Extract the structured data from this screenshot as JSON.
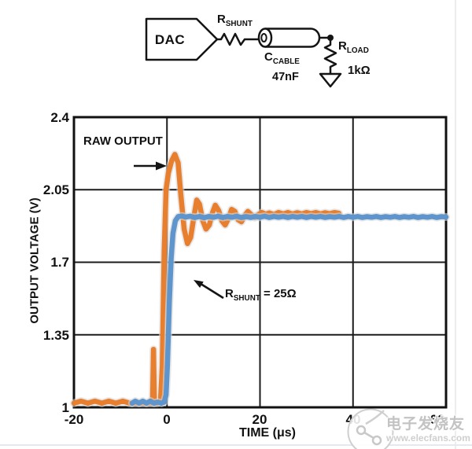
{
  "circuit": {
    "dac": "DAC",
    "rshunt": {
      "main": "R",
      "sub": "SHUNT"
    },
    "ccable": {
      "main": "C",
      "sub": "CABLE",
      "value": "47nF"
    },
    "rload": {
      "main": "R",
      "sub": "LOAD",
      "value": "1kΩ"
    }
  },
  "labels": {
    "raw_output": "RAW OUTPUT",
    "shunt_annotation": {
      "main": "R",
      "sub": "SHUNT",
      "suffix": " = 25Ω"
    }
  },
  "watermark": {
    "brand": "电子发烧友",
    "site": "www.elecfans.com"
  },
  "chart_data": {
    "type": "line",
    "title": "",
    "xlabel": "TIME (μs)",
    "ylabel": "OUTPUT VOLTAGE (V)",
    "xlim": [
      -20,
      60
    ],
    "ylim": [
      1,
      2.4
    ],
    "xticks": [
      -20,
      0,
      20,
      40,
      60
    ],
    "yticks": [
      1,
      1.35,
      1.7,
      2.05,
      2.4
    ],
    "xtick_labels": [
      "-20",
      "0",
      "20",
      "40",
      "60"
    ],
    "ytick_labels": [
      "1",
      "1.35",
      "1.7",
      "2.05",
      "2.4"
    ],
    "grid": true,
    "legend": "none",
    "annotations": [
      "RAW OUTPUT",
      "RSHUNT = 25Ω"
    ],
    "series": [
      {
        "name": "RAW OUTPUT",
        "color": "#E87F2E",
        "points": [
          [
            -20,
            1.02
          ],
          [
            -18.5,
            1.03
          ],
          [
            -17,
            1.02
          ],
          [
            -15.5,
            1.03
          ],
          [
            -14,
            1.02
          ],
          [
            -12.5,
            1.03
          ],
          [
            -11,
            1.02
          ],
          [
            -9.5,
            1.03
          ],
          [
            -8,
            1.02
          ],
          [
            -6.5,
            1.02
          ],
          [
            -5,
            1.02
          ],
          [
            -4,
            1.02
          ],
          [
            -3.1,
            1.02
          ],
          [
            -2.9,
            1.28
          ],
          [
            -2.7,
            1.02
          ],
          [
            -2,
            1.02
          ],
          [
            -1.4,
            1.03
          ],
          [
            -1.0,
            1.2
          ],
          [
            -0.6,
            1.75
          ],
          [
            -0.2,
            2.05
          ],
          [
            0.3,
            2.13
          ],
          [
            1.0,
            2.19
          ],
          [
            1.7,
            2.22
          ],
          [
            2.4,
            2.18
          ],
          [
            3.0,
            2.02
          ],
          [
            3.7,
            1.86
          ],
          [
            4.4,
            1.79
          ],
          [
            5.1,
            1.82
          ],
          [
            5.8,
            1.92
          ],
          [
            6.4,
            2.0
          ],
          [
            7.0,
            1.98
          ],
          [
            7.7,
            1.9
          ],
          [
            8.4,
            1.86
          ],
          [
            9.1,
            1.88
          ],
          [
            9.8,
            1.94
          ],
          [
            10.4,
            1.975
          ],
          [
            11.1,
            1.95
          ],
          [
            11.8,
            1.9
          ],
          [
            12.5,
            1.88
          ],
          [
            13.2,
            1.91
          ],
          [
            13.9,
            1.955
          ],
          [
            14.6,
            1.945
          ],
          [
            15.3,
            1.905
          ],
          [
            16.0,
            1.895
          ],
          [
            16.7,
            1.925
          ],
          [
            17.4,
            1.945
          ],
          [
            18.1,
            1.93
          ],
          [
            18.9,
            1.915
          ],
          [
            19.6,
            1.93
          ],
          [
            20.4,
            1.94
          ],
          [
            21.2,
            1.932
          ],
          [
            22,
            1.938
          ],
          [
            23,
            1.93
          ],
          [
            24,
            1.94
          ],
          [
            25,
            1.933
          ],
          [
            26,
            1.94
          ],
          [
            27,
            1.932
          ],
          [
            28,
            1.939
          ],
          [
            29,
            1.933
          ],
          [
            30,
            1.94
          ],
          [
            31,
            1.934
          ],
          [
            32,
            1.94
          ],
          [
            33,
            1.933
          ],
          [
            34,
            1.939
          ],
          [
            35,
            1.934
          ],
          [
            36,
            1.94
          ],
          [
            37,
            1.936
          ]
        ]
      },
      {
        "name": "RSHUNT = 25Ω",
        "color": "#5E95CD",
        "points": [
          [
            -7.5,
            1.02
          ],
          [
            -6.8,
            1.03
          ],
          [
            -6,
            1.02
          ],
          [
            -5.2,
            1.03
          ],
          [
            -4.4,
            1.02
          ],
          [
            -3.6,
            1.03
          ],
          [
            -2.8,
            1.02
          ],
          [
            -2,
            1.025
          ],
          [
            -1.2,
            1.02
          ],
          [
            -0.6,
            1.025
          ],
          [
            -0.2,
            1.06
          ],
          [
            0.1,
            1.2
          ],
          [
            0.5,
            1.5
          ],
          [
            0.9,
            1.72
          ],
          [
            1.3,
            1.84
          ],
          [
            1.8,
            1.9
          ],
          [
            2.4,
            1.92
          ],
          [
            3.2,
            1.923
          ],
          [
            4,
            1.918
          ],
          [
            5,
            1.922
          ],
          [
            6,
            1.916
          ],
          [
            7,
            1.921
          ],
          [
            8,
            1.915
          ],
          [
            9,
            1.921
          ],
          [
            10,
            1.917
          ],
          [
            11,
            1.922
          ],
          [
            12,
            1.916
          ],
          [
            13,
            1.921
          ],
          [
            14,
            1.917
          ],
          [
            15,
            1.922
          ],
          [
            16,
            1.916
          ],
          [
            17,
            1.92
          ],
          [
            18,
            1.916
          ],
          [
            19,
            1.921
          ],
          [
            20,
            1.917
          ],
          [
            21,
            1.922
          ],
          [
            22,
            1.916
          ],
          [
            23,
            1.921
          ],
          [
            24,
            1.917
          ],
          [
            25,
            1.921
          ],
          [
            26,
            1.916
          ],
          [
            27,
            1.921
          ],
          [
            28,
            1.917
          ],
          [
            29,
            1.921
          ],
          [
            30,
            1.916
          ],
          [
            31,
            1.921
          ],
          [
            32,
            1.917
          ],
          [
            33,
            1.921
          ],
          [
            34,
            1.916
          ],
          [
            35,
            1.92
          ],
          [
            36,
            1.917
          ],
          [
            37,
            1.921
          ],
          [
            38,
            1.916
          ],
          [
            39,
            1.921
          ],
          [
            40,
            1.917
          ],
          [
            41,
            1.921
          ],
          [
            42,
            1.916
          ],
          [
            43,
            1.92
          ],
          [
            44,
            1.917
          ],
          [
            45,
            1.921
          ],
          [
            46,
            1.916
          ],
          [
            47,
            1.92
          ],
          [
            48,
            1.917
          ],
          [
            49,
            1.921
          ],
          [
            50,
            1.916
          ],
          [
            51,
            1.92
          ],
          [
            52,
            1.917
          ],
          [
            53,
            1.921
          ],
          [
            54,
            1.916
          ],
          [
            55,
            1.92
          ],
          [
            56,
            1.917
          ],
          [
            57,
            1.921
          ],
          [
            58,
            1.916
          ],
          [
            59,
            1.92
          ],
          [
            60,
            1.918
          ]
        ]
      }
    ]
  }
}
